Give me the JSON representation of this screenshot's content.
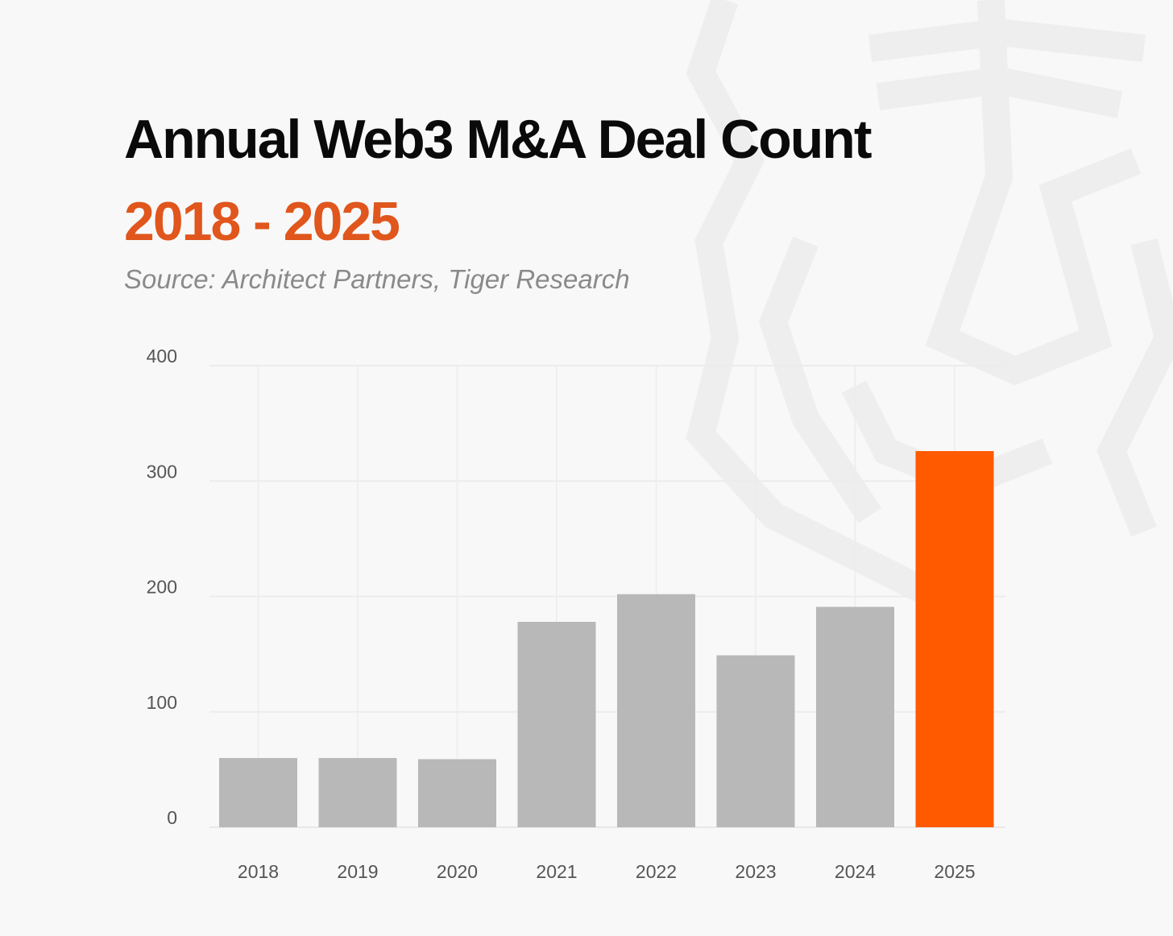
{
  "chart_data": {
    "type": "bar",
    "title": "Annual Web3 M&A Deal Count",
    "subtitle": "2018 - 2025",
    "source": "Source: Architect Partners, Tiger Research",
    "categories": [
      "2018",
      "2019",
      "2020",
      "2021",
      "2022",
      "2023",
      "2024",
      "2025"
    ],
    "values": [
      60,
      60,
      59,
      178,
      202,
      149,
      191,
      326
    ],
    "ylim": [
      0,
      400
    ],
    "yticks": [
      0,
      100,
      200,
      300,
      400
    ],
    "xlabel": "",
    "ylabel": "",
    "grid": true,
    "colors": {
      "default": "#b8b8b8",
      "highlight": "#ff5a00",
      "title": "#0a0a0a",
      "subtitle": "#e0561c"
    },
    "highlight_category": "2025"
  }
}
